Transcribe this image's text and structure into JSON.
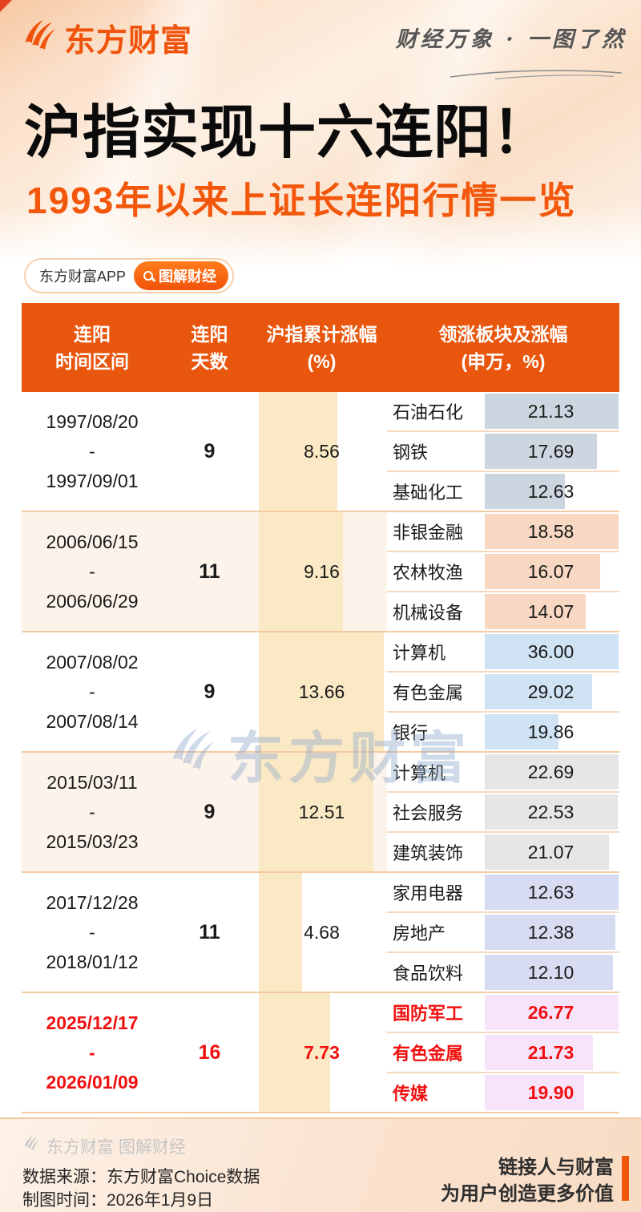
{
  "colors": {
    "accent_orange": "#f0540c",
    "header_bg": "#e9560d",
    "highlight_red": "#f01010",
    "gain_stripe": "#fae9c4",
    "row_separator": "#f4caa3",
    "tint_bg": "#fcf3eb",
    "watermark_blue": "#8fa9cc",
    "footer_bar_orange": "#f1560b"
  },
  "banner": {
    "logo_text": "东方财富",
    "logo_icon": "eastmoney-swoosh-icon",
    "tagline": "财经万象 · 一图了然",
    "title": "沪指实现十六连阳！",
    "subtitle": "1993年以来上证长连阳行情一览",
    "app_pill_label": "东方财富APP",
    "topic_pill_label": "图解财经",
    "topic_pill_icon": "search-icon"
  },
  "table": {
    "columns": [
      {
        "line1": "连阳",
        "line2": "时间区间"
      },
      {
        "line1": "连阳",
        "line2": "天数"
      },
      {
        "line1": "沪指累计涨幅",
        "line2": "(%)"
      },
      {
        "line1": "领涨板块及涨幅",
        "line2": "(申万，%)"
      }
    ],
    "range_separator": "-",
    "gain_max": 13.66,
    "groups": [
      {
        "start": "1997/08/20",
        "end": "1997/09/01",
        "days": "9",
        "gain": "8.56",
        "tinted": false,
        "highlight": false,
        "bar_color": "#cdd6e0",
        "sectors": [
          {
            "name": "石油石化",
            "value": "21.13"
          },
          {
            "name": "钢铁",
            "value": "17.69"
          },
          {
            "name": "基础化工",
            "value": "12.63"
          }
        ]
      },
      {
        "start": "2006/06/15",
        "end": "2006/06/29",
        "days": "11",
        "gain": "9.16",
        "tinted": true,
        "highlight": false,
        "bar_color": "#f8d8c2",
        "sectors": [
          {
            "name": "非银金融",
            "value": "18.58"
          },
          {
            "name": "农林牧渔",
            "value": "16.07"
          },
          {
            "name": "机械设备",
            "value": "14.07"
          }
        ]
      },
      {
        "start": "2007/08/02",
        "end": "2007/08/14",
        "days": "9",
        "gain": "13.66",
        "tinted": false,
        "highlight": false,
        "bar_color": "#cfe3f5",
        "sectors": [
          {
            "name": "计算机",
            "value": "36.00"
          },
          {
            "name": "有色金属",
            "value": "29.02"
          },
          {
            "name": "银行",
            "value": "19.86"
          }
        ]
      },
      {
        "start": "2015/03/11",
        "end": "2015/03/23",
        "days": "9",
        "gain": "12.51",
        "tinted": true,
        "highlight": false,
        "bar_color": "#e6e6e6",
        "sectors": [
          {
            "name": "计算机",
            "value": "22.69"
          },
          {
            "name": "社会服务",
            "value": "22.53"
          },
          {
            "name": "建筑装饰",
            "value": "21.07"
          }
        ]
      },
      {
        "start": "2017/12/28",
        "end": "2018/01/12",
        "days": "11",
        "gain": "4.68",
        "tinted": false,
        "highlight": false,
        "bar_color": "#d8dcf2",
        "sectors": [
          {
            "name": "家用电器",
            "value": "12.63"
          },
          {
            "name": "房地产",
            "value": "12.38"
          },
          {
            "name": "食品饮料",
            "value": "12.10"
          }
        ]
      },
      {
        "start": "2025/12/17",
        "end": "2026/01/09",
        "days": "16",
        "gain": "7.73",
        "tinted": false,
        "highlight": true,
        "bar_color": "#f8e4fa",
        "sectors": [
          {
            "name": "国防军工",
            "value": "26.77"
          },
          {
            "name": "有色金属",
            "value": "21.73"
          },
          {
            "name": "传媒",
            "value": "19.90"
          }
        ]
      }
    ]
  },
  "watermark": {
    "text": "东方财富",
    "icon": "eastmoney-swoosh-icon"
  },
  "footer": {
    "brand": "东方财富 图解财经",
    "source": "数据来源：东方财富Choice数据",
    "date": "制图时间：2026年1月9日",
    "slogan_line1": "链接人与财富",
    "slogan_line2": "为用户创造更多价值"
  },
  "chart_data": {
    "type": "table",
    "title": "沪指实现十六连阳！",
    "subtitle": "1993年以来上证长连阳行情一览",
    "columns": [
      "连阳时间区间",
      "连阳天数",
      "沪指累计涨幅(%)",
      "领涨板块及涨幅(申万，%)"
    ],
    "rows": [
      {
        "period": "1997/08/20 - 1997/09/01",
        "days": 9,
        "index_gain_pct": 8.56,
        "leading_sectors": [
          [
            "石油石化",
            21.13
          ],
          [
            "钢铁",
            17.69
          ],
          [
            "基础化工",
            12.63
          ]
        ]
      },
      {
        "period": "2006/06/15 - 2006/06/29",
        "days": 11,
        "index_gain_pct": 9.16,
        "leading_sectors": [
          [
            "非银金融",
            18.58
          ],
          [
            "农林牧渔",
            16.07
          ],
          [
            "机械设备",
            14.07
          ]
        ]
      },
      {
        "period": "2007/08/02 - 2007/08/14",
        "days": 9,
        "index_gain_pct": 13.66,
        "leading_sectors": [
          [
            "计算机",
            36.0
          ],
          [
            "有色金属",
            29.02
          ],
          [
            "银行",
            19.86
          ]
        ]
      },
      {
        "period": "2015/03/11 - 2015/03/23",
        "days": 9,
        "index_gain_pct": 12.51,
        "leading_sectors": [
          [
            "计算机",
            22.69
          ],
          [
            "社会服务",
            22.53
          ],
          [
            "建筑装饰",
            21.07
          ]
        ]
      },
      {
        "period": "2017/12/28 - 2018/01/12",
        "days": 11,
        "index_gain_pct": 4.68,
        "leading_sectors": [
          [
            "家用电器",
            12.63
          ],
          [
            "房地产",
            12.38
          ],
          [
            "食品饮料",
            12.1
          ]
        ]
      },
      {
        "period": "2025/12/17 - 2026/01/09",
        "days": 16,
        "index_gain_pct": 7.73,
        "leading_sectors": [
          [
            "国防军工",
            26.77
          ],
          [
            "有色金属",
            21.73
          ],
          [
            "传媒",
            19.9
          ]
        ],
        "highlighted": true
      }
    ],
    "notes": "Gain column rendered as cream bars scaled to max 13.66; sector values rendered as tinted bars scaled to each group's max."
  }
}
